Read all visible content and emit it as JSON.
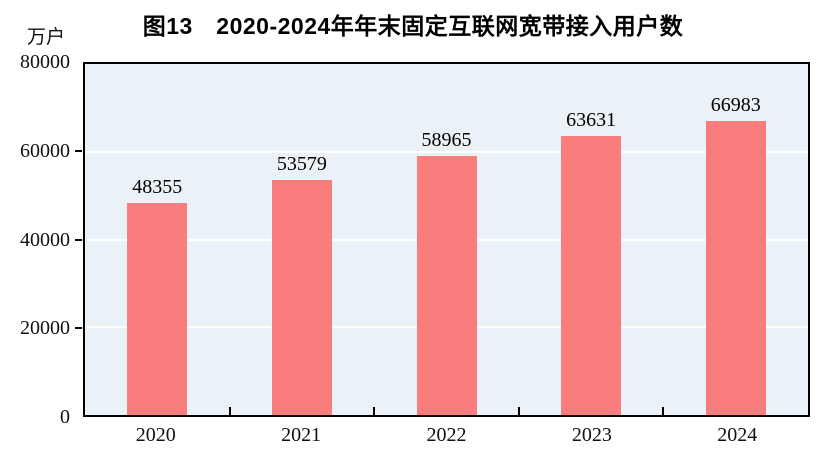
{
  "figure": {
    "title": "图13　2020-2024年年末固定互联网宽带接入用户数",
    "unit_label": "万户"
  },
  "colors": {
    "bar": "#FA7D7D",
    "plot_background": "#EAF1F7",
    "gridline": "#FFFFFF",
    "axis": "#000000",
    "text": "#000000"
  },
  "chart_data": {
    "type": "bar",
    "title": "图13　2020-2024年年末固定互联网宽带接入用户数",
    "categories": [
      "2020",
      "2021",
      "2022",
      "2023",
      "2024"
    ],
    "values": [
      48355,
      53579,
      58965,
      63631,
      66983
    ],
    "xlabel": "",
    "ylabel": "万户",
    "ylim": [
      0,
      80000
    ],
    "yticks": [
      0,
      20000,
      40000,
      60000,
      80000
    ],
    "grid": "horizontal-white-gridlines",
    "legend": "none",
    "data_labels": true
  }
}
